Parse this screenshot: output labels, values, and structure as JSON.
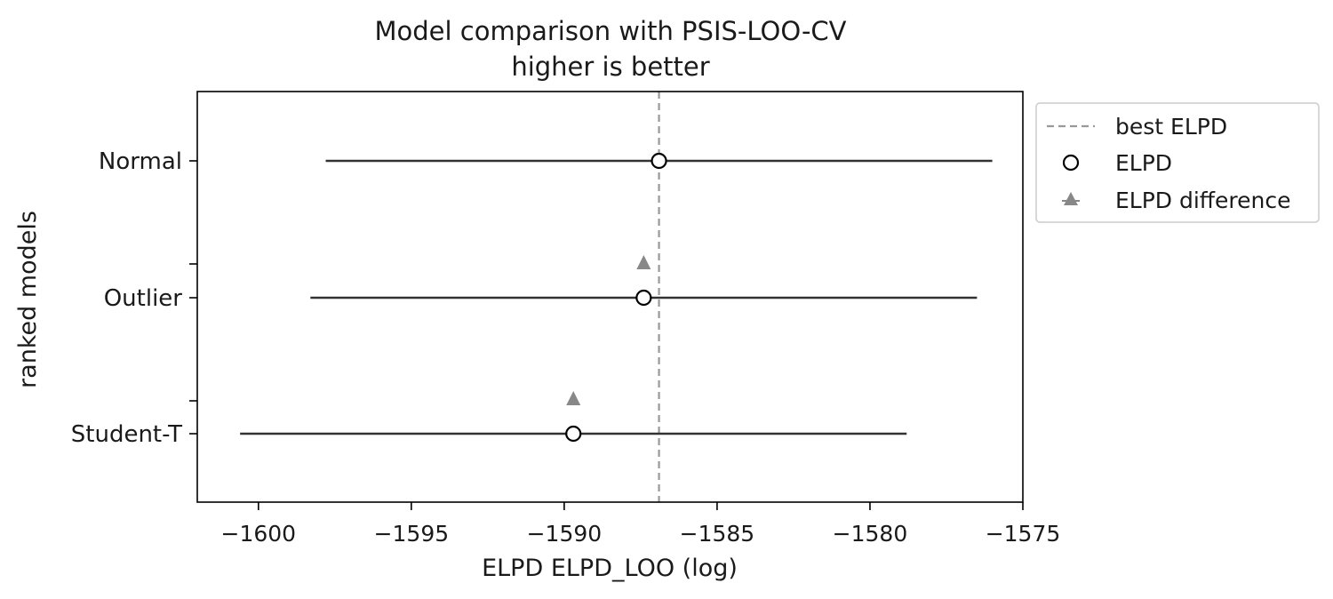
{
  "chart_data": {
    "type": "scatter",
    "title": "Model comparison with PSIS-LOO-CV",
    "subtitle": "higher is better",
    "xlabel": "ELPD ELPD_LOO (log)",
    "ylabel": "ranked models",
    "xlim": [
      -1602,
      -1575
    ],
    "xticks": [
      -1600,
      -1595,
      -1590,
      -1585,
      -1580,
      -1575
    ],
    "xtick_labels": [
      "−1600",
      "−1595",
      "−1590",
      "−1585",
      "−1580",
      "−1575"
    ],
    "categories": [
      "Normal",
      "Outlier",
      "Student-T"
    ],
    "best_elpd": -1586.9,
    "series": [
      {
        "name": "ELPD",
        "marker": "open-circle",
        "values": [
          -1586.9,
          -1587.4,
          -1589.7
        ],
        "interval_low": [
          -1597.8,
          -1598.3,
          -1600.6
        ],
        "interval_high": [
          -1576.0,
          -1576.5,
          -1578.8
        ]
      },
      {
        "name": "ELPD difference",
        "marker": "triangle",
        "values": [
          null,
          -1587.4,
          -1589.7
        ]
      }
    ],
    "reference_line_name": "best ELPD",
    "legend_position": "outside-right-top",
    "grid": false,
    "colors": {
      "axis": "#000000",
      "error_bar": "#333333",
      "best_line": "#999999",
      "triangle": "#888888"
    }
  }
}
